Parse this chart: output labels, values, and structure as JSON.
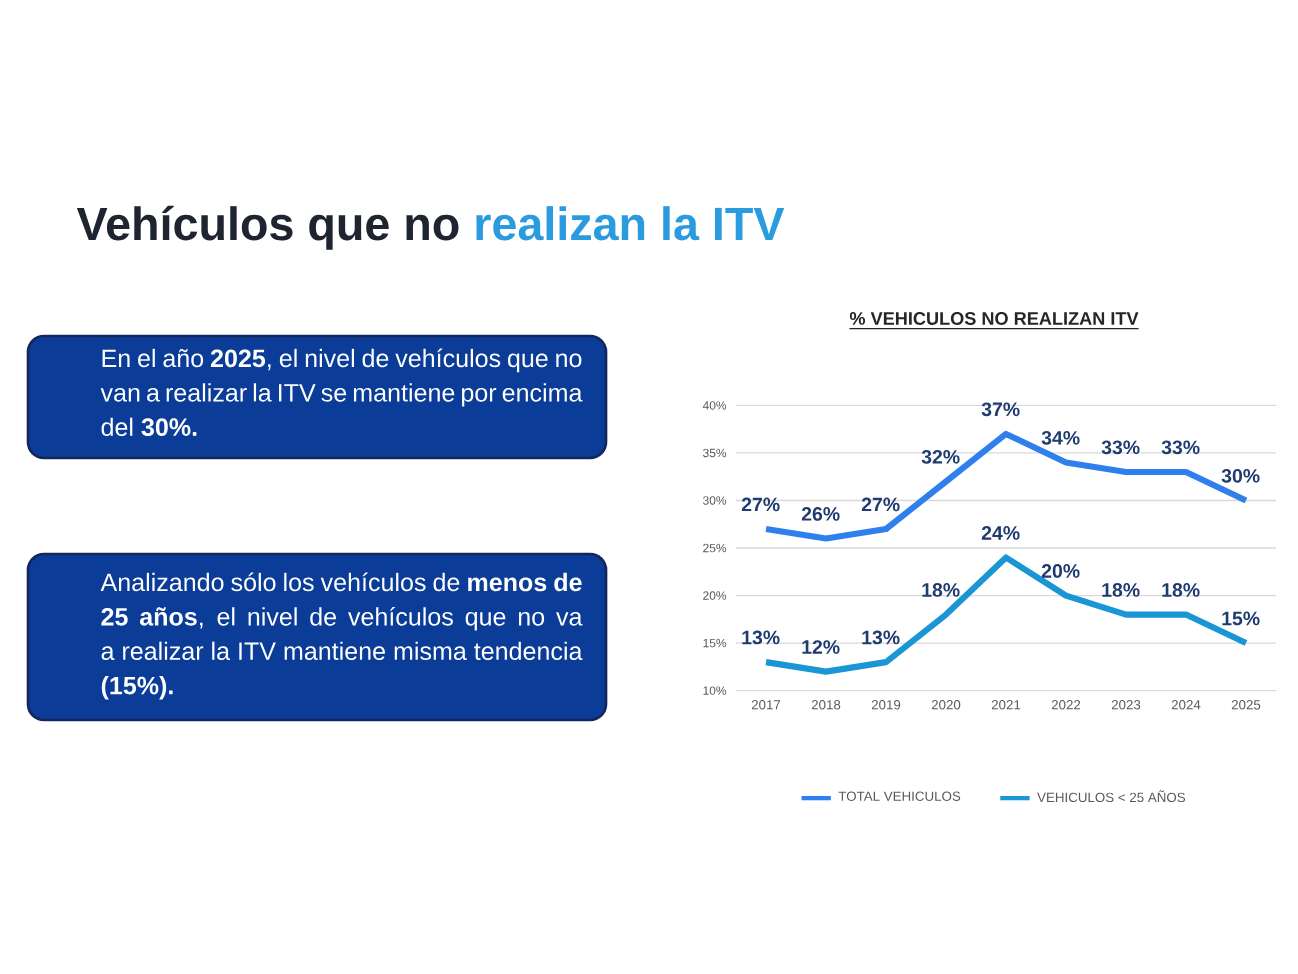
{
  "chart_data": {
    "type": "line",
    "title": "% VEHICULOS NO REALIZAN ITV",
    "categories": [
      "2017",
      "2018",
      "2019",
      "2020",
      "2021",
      "2022",
      "2023",
      "2024",
      "2025"
    ],
    "series": [
      {
        "name": "TOTAL VEHICULOS",
        "color": "#2f80ed",
        "values": [
          27,
          26,
          27,
          32,
          37,
          34,
          33,
          33,
          30
        ],
        "value_labels": [
          "27%",
          "26%",
          "27%",
          "32%",
          "37%",
          "34%",
          "33%",
          "33%",
          "30%"
        ]
      },
      {
        "name": "VEHICULOS < 25 AÑOS",
        "color": "#1a96d4",
        "values": [
          13,
          12,
          13,
          18,
          24,
          20,
          18,
          18,
          15
        ],
        "value_labels": [
          "13%",
          "12%",
          "13%",
          "18%",
          "24%",
          "20%",
          "18%",
          "18%",
          "15%"
        ]
      }
    ],
    "ylim": [
      10,
      40
    ],
    "yticks": [
      {
        "value": 10,
        "label": "10%"
      },
      {
        "value": 15,
        "label": "15%"
      },
      {
        "value": 20,
        "label": "20%"
      },
      {
        "value": 25,
        "label": "25%"
      },
      {
        "value": 30,
        "label": "30%"
      },
      {
        "value": 35,
        "label": "35%"
      },
      {
        "value": 40,
        "label": "40%"
      }
    ],
    "grid": "y",
    "legend": "bottom",
    "line_style": "solid",
    "annotations": [
      "Vehículos que no",
      "realizan la ITV",
      "En el año **2025**, el nivel de vehículos que no van a realizar la ITV se mantiene por encima del **30%.**",
      "Analizando sólo los vehículos de **menos de 25 años**, el nivel de vehículos que no va a realizar la ITV mantiene misma tendencia **(15%).**"
    ]
  }
}
